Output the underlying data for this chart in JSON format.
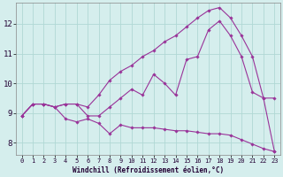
{
  "xlabel": "Windchill (Refroidissement éolien,°C)",
  "bg_color": "#d5eeed",
  "grid_color": "#b0d8d5",
  "line_color": "#993399",
  "xlim": [
    -0.5,
    23.5
  ],
  "ylim": [
    7.6,
    12.7
  ],
  "yticks": [
    8,
    9,
    10,
    11,
    12
  ],
  "xticks": [
    0,
    1,
    2,
    3,
    4,
    5,
    6,
    7,
    8,
    9,
    10,
    11,
    12,
    13,
    14,
    15,
    16,
    17,
    18,
    19,
    20,
    21,
    22,
    23
  ],
  "curve1_x": [
    0,
    1,
    2,
    3,
    4,
    5,
    6,
    7,
    8,
    9,
    10,
    11,
    12,
    13,
    14,
    15,
    16,
    17,
    18,
    19,
    20,
    21,
    22,
    23
  ],
  "curve1_y": [
    8.9,
    9.3,
    9.3,
    9.2,
    8.8,
    8.7,
    8.8,
    8.65,
    8.3,
    8.6,
    8.5,
    8.5,
    8.5,
    8.45,
    8.4,
    8.4,
    8.35,
    8.3,
    8.3,
    8.25,
    8.1,
    7.95,
    7.8,
    7.7
  ],
  "curve2_x": [
    0,
    1,
    2,
    3,
    4,
    5,
    6,
    7,
    8,
    9,
    10,
    11,
    12,
    13,
    14,
    15,
    16,
    17,
    18,
    19,
    20,
    21,
    22,
    23
  ],
  "curve2_y": [
    8.9,
    9.3,
    9.3,
    9.2,
    9.3,
    9.3,
    8.9,
    8.9,
    9.2,
    9.5,
    9.8,
    9.6,
    10.3,
    10.0,
    9.6,
    10.8,
    10.9,
    11.8,
    12.1,
    11.6,
    10.9,
    9.7,
    9.5,
    9.5
  ],
  "curve3_x": [
    0,
    1,
    2,
    3,
    4,
    5,
    6,
    7,
    8,
    9,
    10,
    11,
    12,
    13,
    14,
    15,
    16,
    17,
    18,
    19,
    20,
    21,
    22,
    23
  ],
  "curve3_y": [
    8.9,
    9.3,
    9.3,
    9.2,
    9.3,
    9.3,
    9.2,
    9.6,
    10.1,
    10.4,
    10.6,
    10.9,
    11.1,
    11.4,
    11.6,
    11.9,
    12.2,
    12.45,
    12.55,
    12.2,
    11.6,
    10.9,
    9.5,
    7.7
  ]
}
